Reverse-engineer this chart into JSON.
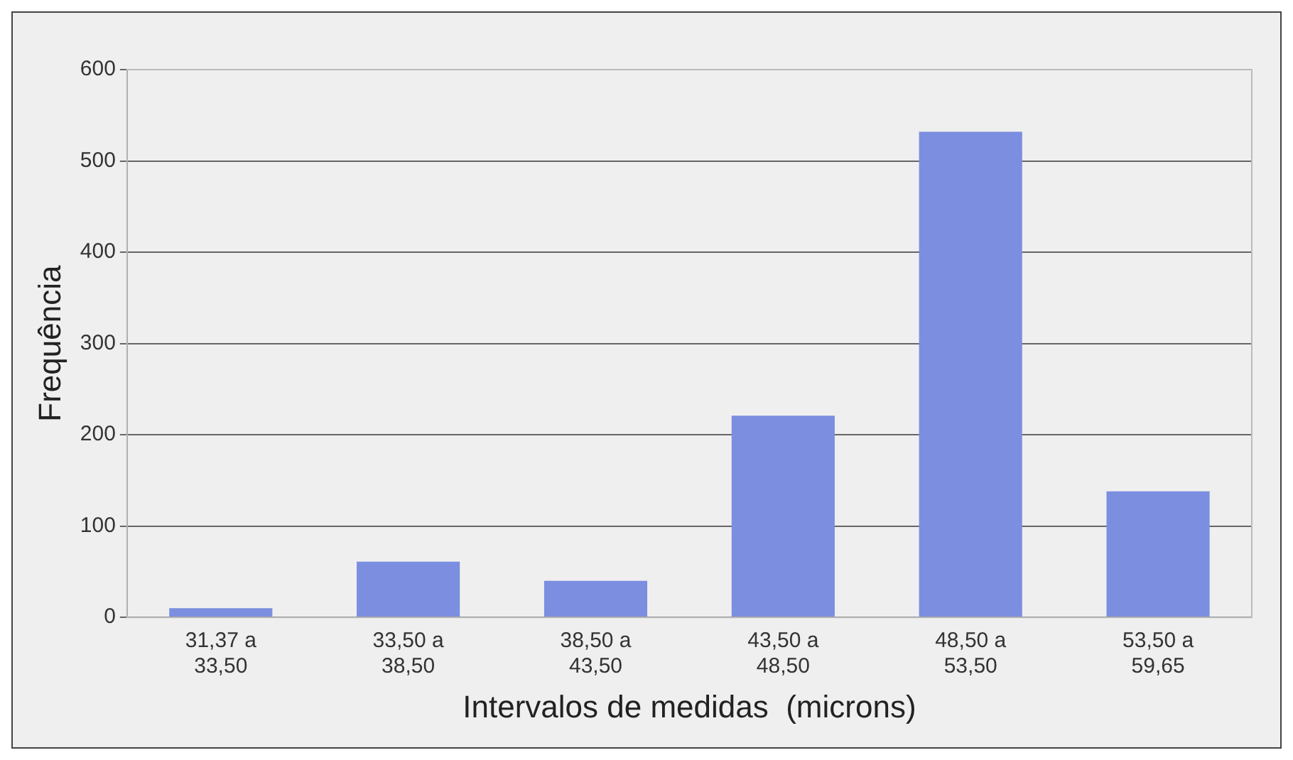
{
  "chart_data": {
    "type": "bar",
    "xlabel": "Intervalos de medidas  (microns)",
    "ylabel": "Frequência",
    "categories": [
      "31,37 a\n33,50",
      "33,50 a\n38,50",
      "38,50 a\n43,50",
      "43,50 a\n48,50",
      "48,50 a\n53,50",
      "53,50 a\n59,65"
    ],
    "values": [
      10,
      61,
      40,
      221,
      532,
      138
    ],
    "color": "#7b8ee0",
    "ylim": [
      0,
      600
    ],
    "yticks": [
      0,
      100,
      200,
      300,
      400,
      500,
      600
    ],
    "grid": "y",
    "legend": false
  }
}
